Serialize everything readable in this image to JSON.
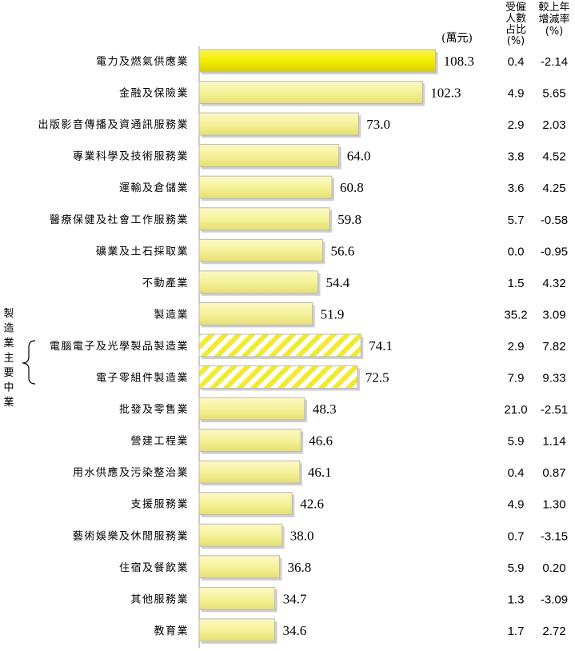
{
  "chart_data": {
    "type": "bar",
    "orientation": "horizontal",
    "unit": "(萬元)",
    "column_headers": {
      "share": [
        "受僱",
        "人數",
        "占比",
        "(%)"
      ],
      "change": [
        "較上年",
        "增減率",
        "(%)"
      ]
    },
    "group_label": [
      "製",
      "造",
      "業",
      "主",
      "要",
      "中",
      "業"
    ],
    "categories": [
      "電力及燃氣供應業",
      "金融及保險業",
      "出版影音傳播及資通訊服務業",
      "專業科學及技術服務業",
      "運輸及倉儲業",
      "醫療保健及社會工作服務業",
      "礦業及土石採取業",
      "不動產業",
      "製造業",
      "電腦電子及光學製品製造業",
      "電子零組件製造業",
      "批發及零售業",
      "營建工程業",
      "用水供應及污染整治業",
      "支援服務業",
      "藝術娛樂及休閒服務業",
      "住宿及餐飲業",
      "其他服務業",
      "教育業"
    ],
    "values": [
      108.3,
      102.3,
      73.0,
      64.0,
      60.8,
      59.8,
      56.6,
      54.4,
      51.9,
      74.1,
      72.5,
      48.3,
      46.6,
      46.1,
      42.6,
      38.0,
      36.8,
      34.7,
      34.6
    ],
    "value_labels": [
      "108.3",
      "102.3",
      "73.0",
      "64.0",
      "60.8",
      "59.8",
      "56.6",
      "54.4",
      "51.9",
      "74.1",
      "72.5",
      "48.3",
      "46.6",
      "46.1",
      "42.6",
      "38.0",
      "36.8",
      "34.7",
      "34.6"
    ],
    "share_pct": [
      "0.4",
      "4.9",
      "2.9",
      "3.8",
      "3.6",
      "5.7",
      "0.0",
      "1.5",
      "35.2",
      "2.9",
      "7.9",
      "21.0",
      "5.9",
      "0.4",
      "4.9",
      "0.7",
      "5.9",
      "1.3",
      "1.7"
    ],
    "change_pct": [
      "-2.14",
      "5.65",
      "2.03",
      "4.52",
      "4.25",
      "-0.58",
      "-0.95",
      "4.32",
      "3.09",
      "7.82",
      "9.33",
      "-2.51",
      "1.14",
      "0.87",
      "1.30",
      "-3.15",
      "0.20",
      "-3.09",
      "2.72"
    ],
    "bar_styles": [
      "highlight",
      "normal",
      "normal",
      "normal",
      "normal",
      "normal",
      "normal",
      "normal",
      "normal",
      "hatched",
      "hatched",
      "normal",
      "normal",
      "normal",
      "normal",
      "normal",
      "normal",
      "normal",
      "normal"
    ],
    "colors": {
      "highlight": "#f2ec00",
      "normal": "#f6f29a",
      "hatch": "#f2ea2e",
      "border": "#b8b8b8",
      "axis": "#999999"
    }
  }
}
